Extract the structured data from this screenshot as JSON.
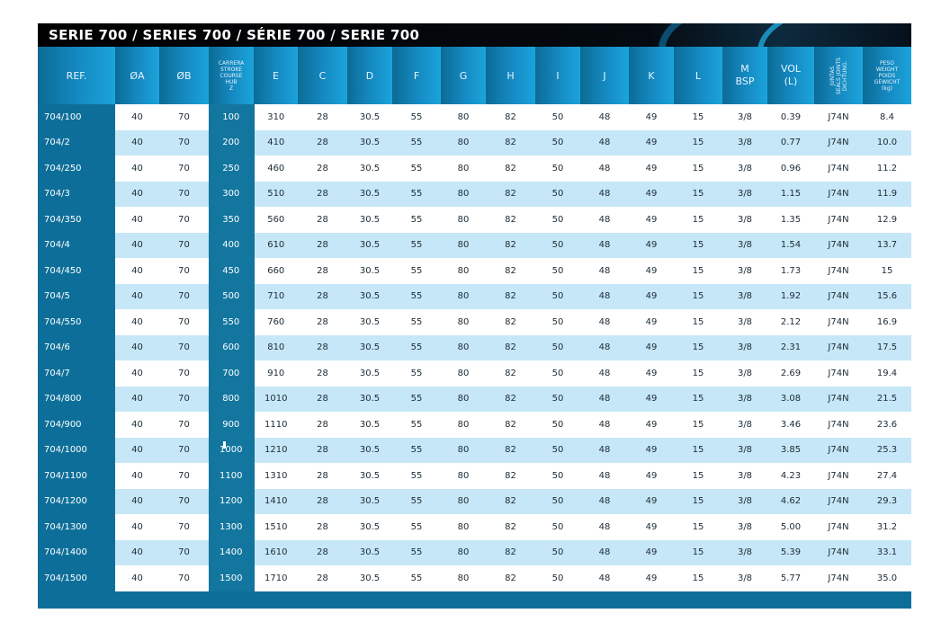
{
  "title": "SERIE 700 / SERIES 700 / SÉRIE 700 / SERIE 700",
  "headers": {
    "ref": "REF.",
    "a": "ØA",
    "b": "ØB",
    "stroke_lines": [
      "CARRERA",
      "STROKE",
      "COURSE",
      "HUB",
      "Z"
    ],
    "e": "E",
    "c": "C",
    "d": "D",
    "f": "F",
    "g": "G",
    "h": "H",
    "i": "I",
    "j": "J",
    "k": "K",
    "l": "L",
    "m_lines": [
      "M",
      "BSP"
    ],
    "vol_lines": [
      "VOL",
      "(L)"
    ],
    "seals_lines": [
      "JUNTAS",
      "SEALS JOINTS",
      "DICHTUNG."
    ],
    "weight_lines": [
      "PESO",
      "WEIGHT",
      "POIDS",
      "GEWICHT",
      "(kg)"
    ]
  },
  "rows": [
    {
      "ref": "704/100",
      "a": "40",
      "b": "70",
      "z": "100",
      "e": "310",
      "c": "28",
      "d": "30.5",
      "f": "55",
      "g": "80",
      "h": "82",
      "i": "50",
      "j": "48",
      "k": "49",
      "l": "15",
      "m": "3/8",
      "vol": "0.39",
      "seals": "J74N",
      "kg": "8.4"
    },
    {
      "ref": "704/2",
      "a": "40",
      "b": "70",
      "z": "200",
      "e": "410",
      "c": "28",
      "d": "30.5",
      "f": "55",
      "g": "80",
      "h": "82",
      "i": "50",
      "j": "48",
      "k": "49",
      "l": "15",
      "m": "3/8",
      "vol": "0.77",
      "seals": "J74N",
      "kg": "10.0"
    },
    {
      "ref": "704/250",
      "a": "40",
      "b": "70",
      "z": "250",
      "e": "460",
      "c": "28",
      "d": "30.5",
      "f": "55",
      "g": "80",
      "h": "82",
      "i": "50",
      "j": "48",
      "k": "49",
      "l": "15",
      "m": "3/8",
      "vol": "0.96",
      "seals": "J74N",
      "kg": "11.2"
    },
    {
      "ref": "704/3",
      "a": "40",
      "b": "70",
      "z": "300",
      "e": "510",
      "c": "28",
      "d": "30.5",
      "f": "55",
      "g": "80",
      "h": "82",
      "i": "50",
      "j": "48",
      "k": "49",
      "l": "15",
      "m": "3/8",
      "vol": "1.15",
      "seals": "J74N",
      "kg": "11.9"
    },
    {
      "ref": "704/350",
      "a": "40",
      "b": "70",
      "z": "350",
      "e": "560",
      "c": "28",
      "d": "30.5",
      "f": "55",
      "g": "80",
      "h": "82",
      "i": "50",
      "j": "48",
      "k": "49",
      "l": "15",
      "m": "3/8",
      "vol": "1.35",
      "seals": "J74N",
      "kg": "12.9"
    },
    {
      "ref": "704/4",
      "a": "40",
      "b": "70",
      "z": "400",
      "e": "610",
      "c": "28",
      "d": "30.5",
      "f": "55",
      "g": "80",
      "h": "82",
      "i": "50",
      "j": "48",
      "k": "49",
      "l": "15",
      "m": "3/8",
      "vol": "1.54",
      "seals": "J74N",
      "kg": "13.7"
    },
    {
      "ref": "704/450",
      "a": "40",
      "b": "70",
      "z": "450",
      "e": "660",
      "c": "28",
      "d": "30.5",
      "f": "55",
      "g": "80",
      "h": "82",
      "i": "50",
      "j": "48",
      "k": "49",
      "l": "15",
      "m": "3/8",
      "vol": "1.73",
      "seals": "J74N",
      "kg": "15"
    },
    {
      "ref": "704/5",
      "a": "40",
      "b": "70",
      "z": "500",
      "e": "710",
      "c": "28",
      "d": "30.5",
      "f": "55",
      "g": "80",
      "h": "82",
      "i": "50",
      "j": "48",
      "k": "49",
      "l": "15",
      "m": "3/8",
      "vol": "1.92",
      "seals": "J74N",
      "kg": "15.6"
    },
    {
      "ref": "704/550",
      "a": "40",
      "b": "70",
      "z": "550",
      "e": "760",
      "c": "28",
      "d": "30.5",
      "f": "55",
      "g": "80",
      "h": "82",
      "i": "50",
      "j": "48",
      "k": "49",
      "l": "15",
      "m": "3/8",
      "vol": "2.12",
      "seals": "J74N",
      "kg": "16.9"
    },
    {
      "ref": "704/6",
      "a": "40",
      "b": "70",
      "z": "600",
      "e": "810",
      "c": "28",
      "d": "30.5",
      "f": "55",
      "g": "80",
      "h": "82",
      "i": "50",
      "j": "48",
      "k": "49",
      "l": "15",
      "m": "3/8",
      "vol": "2.31",
      "seals": "J74N",
      "kg": "17.5"
    },
    {
      "ref": "704/7",
      "a": "40",
      "b": "70",
      "z": "700",
      "e": "910",
      "c": "28",
      "d": "30.5",
      "f": "55",
      "g": "80",
      "h": "82",
      "i": "50",
      "j": "48",
      "k": "49",
      "l": "15",
      "m": "3/8",
      "vol": "2.69",
      "seals": "J74N",
      "kg": "19.4"
    },
    {
      "ref": "704/800",
      "a": "40",
      "b": "70",
      "z": "800",
      "e": "1010",
      "c": "28",
      "d": "30.5",
      "f": "55",
      "g": "80",
      "h": "82",
      "i": "50",
      "j": "48",
      "k": "49",
      "l": "15",
      "m": "3/8",
      "vol": "3.08",
      "seals": "J74N",
      "kg": "21.5"
    },
    {
      "ref": "704/900",
      "a": "40",
      "b": "70",
      "z": "900",
      "e": "1110",
      "c": "28",
      "d": "30.5",
      "f": "55",
      "g": "80",
      "h": "82",
      "i": "50",
      "j": "48",
      "k": "49",
      "l": "15",
      "m": "3/8",
      "vol": "3.46",
      "seals": "J74N",
      "kg": "23.6"
    },
    {
      "ref": "704/1000",
      "a": "40",
      "b": "70",
      "z": "1000",
      "e": "1210",
      "c": "28",
      "d": "30.5",
      "f": "55",
      "g": "80",
      "h": "82",
      "i": "50",
      "j": "48",
      "k": "49",
      "l": "15",
      "m": "3/8",
      "vol": "3.85",
      "seals": "J74N",
      "kg": "25.3"
    },
    {
      "ref": "704/1100",
      "a": "40",
      "b": "70",
      "z": "1100",
      "e": "1310",
      "c": "28",
      "d": "30.5",
      "f": "55",
      "g": "80",
      "h": "82",
      "i": "50",
      "j": "48",
      "k": "49",
      "l": "15",
      "m": "3/8",
      "vol": "4.23",
      "seals": "J74N",
      "kg": "27.4"
    },
    {
      "ref": "704/1200",
      "a": "40",
      "b": "70",
      "z": "1200",
      "e": "1410",
      "c": "28",
      "d": "30.5",
      "f": "55",
      "g": "80",
      "h": "82",
      "i": "50",
      "j": "48",
      "k": "49",
      "l": "15",
      "m": "3/8",
      "vol": "4.62",
      "seals": "J74N",
      "kg": "29.3"
    },
    {
      "ref": "704/1300",
      "a": "40",
      "b": "70",
      "z": "1300",
      "e": "1510",
      "c": "28",
      "d": "30.5",
      "f": "55",
      "g": "80",
      "h": "82",
      "i": "50",
      "j": "48",
      "k": "49",
      "l": "15",
      "m": "3/8",
      "vol": "5.00",
      "seals": "J74N",
      "kg": "31.2"
    },
    {
      "ref": "704/1400",
      "a": "40",
      "b": "70",
      "z": "1400",
      "e": "1610",
      "c": "28",
      "d": "30.5",
      "f": "55",
      "g": "80",
      "h": "82",
      "i": "50",
      "j": "48",
      "k": "49",
      "l": "15",
      "m": "3/8",
      "vol": "5.39",
      "seals": "J74N",
      "kg": "33.1"
    },
    {
      "ref": "704/1500",
      "a": "40",
      "b": "70",
      "z": "1500",
      "e": "1710",
      "c": "28",
      "d": "30.5",
      "f": "55",
      "g": "80",
      "h": "82",
      "i": "50",
      "j": "48",
      "k": "49",
      "l": "15",
      "m": "3/8",
      "vol": "5.77",
      "seals": "J74N",
      "kg": "35.0"
    }
  ],
  "colors": {
    "dark_blue": "#0d6f99",
    "light_row": "#c6e7f7",
    "title_bg": "#000000"
  }
}
